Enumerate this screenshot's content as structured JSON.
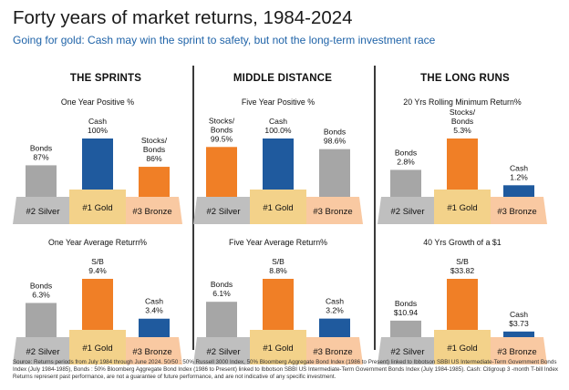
{
  "header": {
    "title": "Forty years of market returns, 1984-2024",
    "subtitle": "Going for gold: Cash may win the sprint to safety, but not the long-term investment race"
  },
  "columns": [
    "THE SPRINTS",
    "MIDDLE DISTANCE",
    "THE LONG RUNS"
  ],
  "podium": {
    "silver": "#2 Silver",
    "gold": "#1 Gold",
    "bronze": "#3 Bronze"
  },
  "colors": {
    "silver_bar": "#a6a6a6",
    "gold_bar": "#1f5a9e",
    "bronze_bar": "#f07f26",
    "silver_podium": "#bfbfbf",
    "gold_podium": "#f3d28a",
    "bronze_podium": "#f9c9a2",
    "title_blue": "#1f63a8"
  },
  "chart_data": [
    {
      "type": "bar",
      "title": "One Year Positive %",
      "unit": "%",
      "bars": [
        {
          "place": "silver",
          "label": "Bonds",
          "value": 87,
          "value_text": "87%",
          "color": "#a6a6a6"
        },
        {
          "place": "gold",
          "label": "Cash",
          "value": 100,
          "value_text": "100%",
          "color": "#1f5a9e"
        },
        {
          "place": "bronze",
          "label": "Stocks/\nBonds",
          "value": 86,
          "value_text": "86%",
          "color": "#f07f26"
        }
      ]
    },
    {
      "type": "bar",
      "title": "Five Year Positive %",
      "unit": "%",
      "bars": [
        {
          "place": "silver",
          "label": "Stocks/\nBonds",
          "value": 99.5,
          "value_text": "99.5%",
          "color": "#f07f26"
        },
        {
          "place": "gold",
          "label": "Cash",
          "value": 100.0,
          "value_text": "100.0%",
          "color": "#1f5a9e"
        },
        {
          "place": "bronze",
          "label": "Bonds",
          "value": 98.6,
          "value_text": "98.6%",
          "color": "#a6a6a6"
        }
      ]
    },
    {
      "type": "bar",
      "title": "20 Yrs Rolling Minimum Return%",
      "unit": "%",
      "bars": [
        {
          "place": "silver",
          "label": "Bonds",
          "value": 2.8,
          "value_text": "2.8%",
          "color": "#a6a6a6"
        },
        {
          "place": "gold",
          "label": "Stocks/\nBonds",
          "value": 5.3,
          "value_text": "5.3%",
          "color": "#f07f26"
        },
        {
          "place": "bronze",
          "label": "Cash",
          "value": 1.2,
          "value_text": "1.2%",
          "color": "#1f5a9e"
        }
      ]
    },
    {
      "type": "bar",
      "title": "One Year Average Return%",
      "unit": "%",
      "bars": [
        {
          "place": "silver",
          "label": "Bonds",
          "value": 6.3,
          "value_text": "6.3%",
          "color": "#a6a6a6"
        },
        {
          "place": "gold",
          "label": "S/B",
          "value": 9.4,
          "value_text": "9.4%",
          "color": "#f07f26"
        },
        {
          "place": "bronze",
          "label": "Cash",
          "value": 3.4,
          "value_text": "3.4%",
          "color": "#1f5a9e"
        }
      ]
    },
    {
      "type": "bar",
      "title": "Five Year Average Return%",
      "unit": "%",
      "bars": [
        {
          "place": "silver",
          "label": "Bonds",
          "value": 6.1,
          "value_text": "6.1%",
          "color": "#a6a6a6"
        },
        {
          "place": "gold",
          "label": "S/B",
          "value": 8.8,
          "value_text": "8.8%",
          "color": "#f07f26"
        },
        {
          "place": "bronze",
          "label": "Cash",
          "value": 3.2,
          "value_text": "3.2%",
          "color": "#1f5a9e"
        }
      ]
    },
    {
      "type": "bar",
      "title": "40 Yrs Growth of a $1",
      "unit": "$",
      "bars": [
        {
          "place": "silver",
          "label": "Bonds",
          "value": 10.94,
          "value_text": "$10.94",
          "color": "#a6a6a6"
        },
        {
          "place": "gold",
          "label": "S/B",
          "value": 33.82,
          "value_text": "$33.82",
          "color": "#f07f26"
        },
        {
          "place": "bronze",
          "label": "Cash",
          "value": 3.73,
          "value_text": "$3.73",
          "color": "#1f5a9e"
        }
      ]
    }
  ],
  "source": "Source: Returns periods from July 1984 through June 2024. 50/50 : 50% Russell 3000 Index, 50% Bloomberg Aggregate Bond Index (1986 to Present) linked to Ibbotson  SBBI US Intermediate-Term Government Bonds Index (July 1984-1985), Bonds : 50% Bloomberg Aggregate Bond Index (1986 to Present) linked to Ibbotson  SBBI US Intermediate-Term Government Bonds Index (July 1984-1985).  Cash: Citigroup 3 -month T-bill Index Returns represent past performance, are not a guarantee of future performance, and are not indicative of any specific investment."
}
